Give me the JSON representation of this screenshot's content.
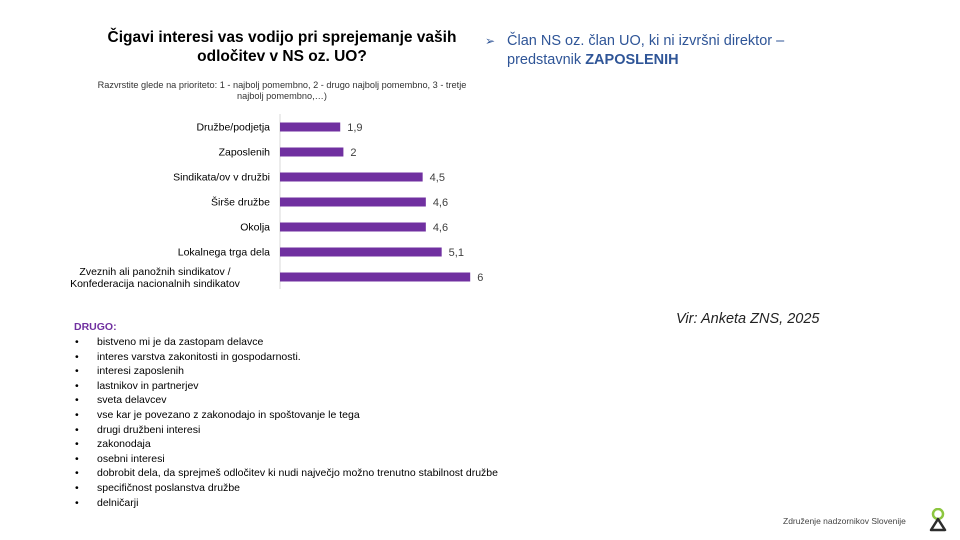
{
  "slide": {
    "right_bullet_prefix": "Član NS oz. član UO, ki ni izvršni direktor – predstavnik ",
    "right_bullet_bold": "ZAPOSLENIH",
    "source": "Vir: Anketa ZNS, 2025",
    "footer": "Združenje nadzornikov Slovenije",
    "drugo_title": "DRUGO:",
    "drugo_items": [
      "bistveno mi je da zastopam delavce",
      "interes varstva zakonitosti in gospodarnosti.",
      "interesi zaposlenih",
      "lastnikov in partnerjev",
      "sveta delavcev",
      "vse kar je povezano z zakonodajo in spoštovanje le tega",
      "drugi družbeni interesi",
      "zakonodaja",
      "osebni interesi",
      "dobrobit dela, da sprejmeš odločitev ki nudi največjo možno trenutno stabilnost družbe",
      "specifičnost poslanstva družbe",
      "delničarji"
    ],
    "colors": {
      "bar": "#7030a0",
      "accent_blue": "#2f5597",
      "logo_green": "#8cc63f"
    }
  },
  "chart_data": {
    "type": "bar",
    "orientation": "horizontal",
    "title": "Čigavi interesi vas vodijo pri sprejemanje vaših odločitev v NS oz. UO?",
    "subtitle": "Razvrstite glede na prioriteto: 1 - najbolj pomembno, 2 - drugo najbolj pomembno, 3 - tretje najbolj pomembno,…)",
    "categories": [
      "Družbe/podjetja",
      "Zaposlenih",
      "Sindikata/ov v družbi",
      "Širše družbe",
      "Okolja",
      "Lokalnega trga dela",
      "Zveznih ali panožnih sindikatov / Konfederacija nacionalnih sindikatov"
    ],
    "values": [
      1.9,
      2,
      4.5,
      4.6,
      4.6,
      5.1,
      6
    ],
    "data_labels": [
      "1,9",
      "2",
      "4,5",
      "4,6",
      "4,6",
      "5,1",
      "6"
    ],
    "xlim": [
      0,
      6
    ],
    "grid": false,
    "legend": "none"
  }
}
